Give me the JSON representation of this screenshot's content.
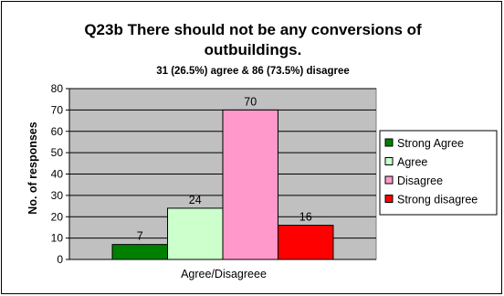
{
  "chart_data": {
    "type": "bar",
    "title": "Q23b There should not be any conversions of outbuildings.",
    "title_lines": [
      "Q23b There should not be any conversions of",
      "outbuildings."
    ],
    "subtitle": "31 (26.5%) agree & 86 (73.5%) disagree",
    "xlabel": "Agree/Disagreee",
    "ylabel": "No. of responses",
    "ylim": [
      0,
      80
    ],
    "yticks": [
      0,
      10,
      20,
      30,
      40,
      50,
      60,
      70,
      80
    ],
    "grid": true,
    "legend_position": "right",
    "series": [
      {
        "name": "Strong Agree",
        "value": 7,
        "color": "#008000"
      },
      {
        "name": "Agree",
        "value": 24,
        "color": "#CCFFCC"
      },
      {
        "name": "Disagree",
        "value": 70,
        "color": "#FF99CC"
      },
      {
        "name": "Strong disagree",
        "value": 16,
        "color": "#FF0000"
      }
    ],
    "plot_background": "#C0C0C0"
  }
}
